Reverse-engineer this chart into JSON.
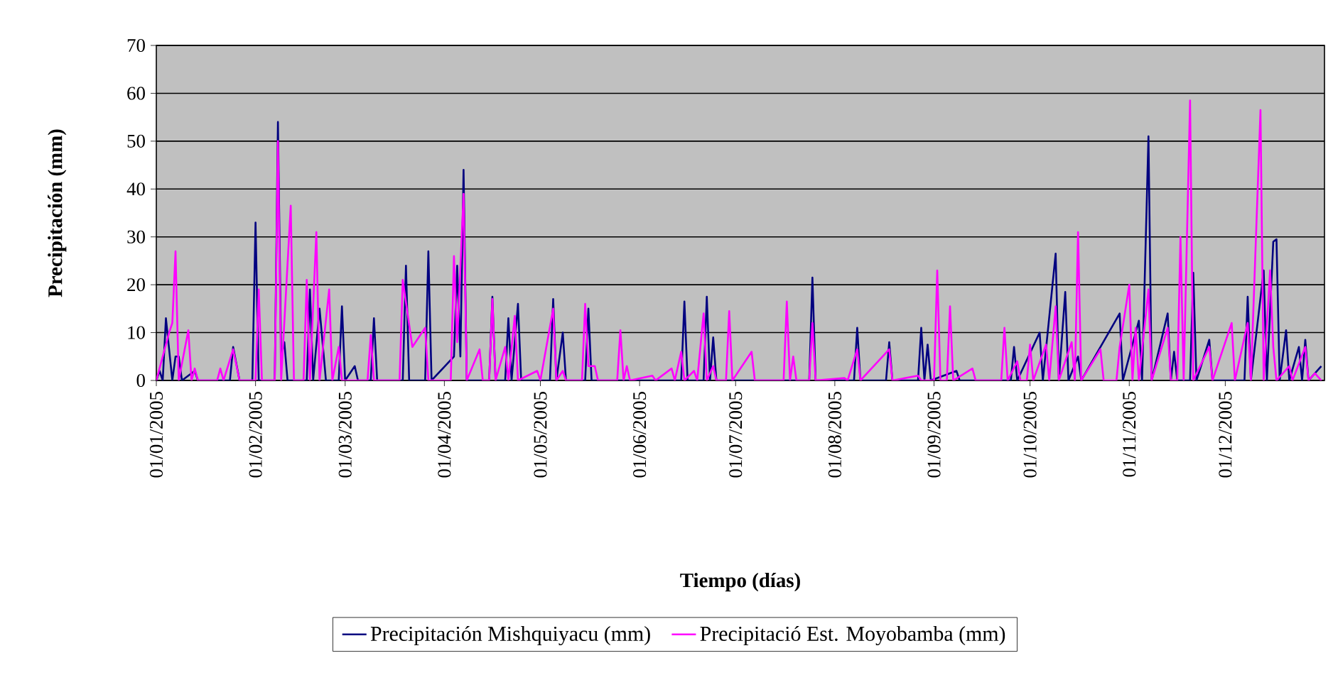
{
  "chart_data": {
    "type": "line",
    "xlabel": "Tiempo (días)",
    "ylabel": "Precipitación (mm)",
    "xlim": [
      "2005-01-01",
      "2006-01-01"
    ],
    "ylim": [
      0,
      70
    ],
    "yticks": [
      0,
      10,
      20,
      30,
      40,
      50,
      60,
      70
    ],
    "xticks": [
      {
        "value": "2005-01-01",
        "label": "01/01/2005"
      },
      {
        "value": "2005-02-01",
        "label": "01/02/2005"
      },
      {
        "value": "2005-03-01",
        "label": "01/03/2005"
      },
      {
        "value": "2005-04-01",
        "label": "01/04/2005"
      },
      {
        "value": "2005-05-01",
        "label": "01/05/2005"
      },
      {
        "value": "2005-06-01",
        "label": "01/06/2005"
      },
      {
        "value": "2005-07-01",
        "label": "01/07/2005"
      },
      {
        "value": "2005-08-01",
        "label": "01/08/2005"
      },
      {
        "value": "2005-09-01",
        "label": "01/09/2005"
      },
      {
        "value": "2005-10-01",
        "label": "01/10/2005"
      },
      {
        "value": "2005-11-01",
        "label": "01/11/2005"
      },
      {
        "value": "2005-12-01",
        "label": "01/12/2005"
      }
    ],
    "grid": "y",
    "legend": "bottom",
    "series": [
      {
        "name": "Precipitación Mishquiyacu (mm)",
        "color": "#000080",
        "x": [
          "2005-01-01",
          "2005-01-02",
          "2005-01-03",
          "2005-01-04",
          "2005-01-06",
          "2005-01-07",
          "2005-01-08",
          "2005-01-09",
          "2005-01-13",
          "2005-01-14",
          "2005-01-24",
          "2005-01-25",
          "2005-01-27",
          "2005-01-31",
          "2005-02-01",
          "2005-02-02",
          "2005-02-07",
          "2005-02-08",
          "2005-02-09",
          "2005-02-10",
          "2005-02-11",
          "2005-02-17",
          "2005-02-18",
          "2005-02-19",
          "2005-02-21",
          "2005-02-23",
          "2005-02-27",
          "2005-02-28",
          "2005-03-01",
          "2005-03-04",
          "2005-03-05",
          "2005-03-09",
          "2005-03-10",
          "2005-03-11",
          "2005-03-19",
          "2005-03-20",
          "2005-03-21",
          "2005-03-26",
          "2005-03-27",
          "2005-03-28",
          "2005-04-04",
          "2005-04-05",
          "2005-04-06",
          "2005-04-07",
          "2005-04-08",
          "2005-04-15",
          "2005-04-16",
          "2005-04-17",
          "2005-04-20",
          "2005-04-21",
          "2005-04-22",
          "2005-04-24",
          "2005-04-25",
          "2005-05-04",
          "2005-05-05",
          "2005-05-06",
          "2005-05-08",
          "2005-05-09",
          "2005-05-15",
          "2005-05-16",
          "2005-05-17",
          "2005-06-14",
          "2005-06-15",
          "2005-06-16",
          "2005-06-21",
          "2005-06-22",
          "2005-06-23",
          "2005-06-24",
          "2005-06-25",
          "2005-07-24",
          "2005-07-25",
          "2005-07-26",
          "2005-08-07",
          "2005-08-08",
          "2005-08-09",
          "2005-08-17",
          "2005-08-18",
          "2005-08-19",
          "2005-08-27",
          "2005-08-28",
          "2005-08-29",
          "2005-08-30",
          "2005-08-31",
          "2005-09-08",
          "2005-09-09",
          "2005-09-25",
          "2005-09-26",
          "2005-09-27",
          "2005-10-04",
          "2005-10-05",
          "2005-10-09",
          "2005-10-10",
          "2005-10-12",
          "2005-10-13",
          "2005-10-16",
          "2005-10-17",
          "2005-10-29",
          "2005-10-30",
          "2005-11-04",
          "2005-11-05",
          "2005-11-07",
          "2005-11-08",
          "2005-11-13",
          "2005-11-14",
          "2005-11-15",
          "2005-11-16",
          "2005-11-20",
          "2005-11-21",
          "2005-11-22",
          "2005-11-26",
          "2005-11-27",
          "2005-12-07",
          "2005-12-08",
          "2005-12-09",
          "2005-12-13",
          "2005-12-14",
          "2005-12-16",
          "2005-12-17",
          "2005-12-18",
          "2005-12-20",
          "2005-12-21",
          "2005-12-24",
          "2005-12-25",
          "2005-12-26",
          "2005-12-27",
          "2005-12-31"
        ],
        "values": [
          0,
          2,
          0,
          13,
          0,
          5,
          5,
          0,
          2,
          0,
          0,
          7,
          0,
          0,
          33,
          0,
          0,
          54,
          5,
          8,
          0,
          0,
          19,
          0,
          15,
          0,
          0,
          15.5,
          0,
          3,
          0,
          0,
          13,
          0,
          0,
          24,
          0,
          0,
          27,
          0,
          5,
          24,
          5,
          44,
          0,
          0,
          17.5,
          0,
          0,
          13,
          0,
          16,
          0,
          0,
          17,
          0,
          10,
          0,
          0,
          15,
          0,
          0,
          16.5,
          0,
          0,
          17.5,
          0,
          9,
          0,
          0,
          21.5,
          0,
          0,
          11,
          0,
          0,
          8,
          0,
          0,
          11,
          0,
          7.5,
          0,
          2,
          0,
          0,
          7,
          0,
          10,
          0,
          26.5,
          0,
          18.5,
          0,
          5,
          0,
          14,
          0,
          12.5,
          0,
          51,
          0,
          14,
          0,
          6,
          0,
          0,
          22.5,
          0,
          8.5,
          0,
          0,
          17.5,
          0,
          23,
          0,
          29,
          29.5,
          0,
          10.5,
          0,
          7,
          0,
          8.5,
          0,
          3
        ]
      },
      {
        "name": "Precipitació Est. Moyobamba (mm)",
        "color": "#ff00ff",
        "x": [
          "2005-01-01",
          "2005-01-05",
          "2005-01-06",
          "2005-01-07",
          "2005-01-08",
          "2005-01-11",
          "2005-01-12",
          "2005-01-13",
          "2005-01-14",
          "2005-01-20",
          "2005-01-21",
          "2005-01-22",
          "2005-01-25",
          "2005-01-27",
          "2005-02-01",
          "2005-02-02",
          "2005-02-03",
          "2005-02-07",
          "2005-02-08",
          "2005-02-09",
          "2005-02-12",
          "2005-02-13",
          "2005-02-16",
          "2005-02-17",
          "2005-02-18",
          "2005-02-20",
          "2005-02-21",
          "2005-02-24",
          "2005-02-25",
          "2005-02-27",
          "2005-02-28",
          "2005-03-08",
          "2005-03-09",
          "2005-03-10",
          "2005-03-18",
          "2005-03-19",
          "2005-03-22",
          "2005-03-26",
          "2005-03-27",
          "2005-04-03",
          "2005-04-04",
          "2005-04-05",
          "2005-04-07",
          "2005-04-08",
          "2005-04-12",
          "2005-04-13",
          "2005-04-15",
          "2005-04-16",
          "2005-04-17",
          "2005-04-20",
          "2005-04-21",
          "2005-04-23",
          "2005-04-24",
          "2005-04-30",
          "2005-05-01",
          "2005-05-05",
          "2005-05-06",
          "2005-05-08",
          "2005-05-09",
          "2005-05-14",
          "2005-05-15",
          "2005-05-16",
          "2005-05-18",
          "2005-05-19",
          "2005-05-25",
          "2005-05-26",
          "2005-05-27",
          "2005-05-28",
          "2005-05-29",
          "2005-06-05",
          "2005-06-06",
          "2005-06-11",
          "2005-06-12",
          "2005-06-14",
          "2005-06-15",
          "2005-06-18",
          "2005-06-19",
          "2005-06-21",
          "2005-06-22",
          "2005-06-24",
          "2005-06-25",
          "2005-06-28",
          "2005-06-29",
          "2005-06-30",
          "2005-07-06",
          "2005-07-07",
          "2005-07-16",
          "2005-07-17",
          "2005-07-18",
          "2005-07-19",
          "2005-07-20",
          "2005-07-24",
          "2005-07-25",
          "2005-07-26",
          "2005-08-04",
          "2005-08-05",
          "2005-08-08",
          "2005-08-09",
          "2005-08-18",
          "2005-08-19",
          "2005-08-27",
          "2005-08-28",
          "2005-09-01",
          "2005-09-02",
          "2005-09-03",
          "2005-09-05",
          "2005-09-06",
          "2005-09-07",
          "2005-09-13",
          "2005-09-14",
          "2005-09-22",
          "2005-09-23",
          "2005-09-24",
          "2005-09-27",
          "2005-09-28",
          "2005-09-30",
          "2005-10-01",
          "2005-10-02",
          "2005-10-06",
          "2005-10-07",
          "2005-10-09",
          "2005-10-10",
          "2005-10-14",
          "2005-10-15",
          "2005-10-16",
          "2005-10-17",
          "2005-10-23",
          "2005-10-24",
          "2005-10-28",
          "2005-10-29",
          "2005-11-01",
          "2005-11-02",
          "2005-11-03",
          "2005-11-04",
          "2005-11-07",
          "2005-11-08",
          "2005-11-13",
          "2005-11-14",
          "2005-11-16",
          "2005-11-17",
          "2005-11-18",
          "2005-11-20",
          "2005-11-21",
          "2005-11-26",
          "2005-11-27",
          "2005-12-03",
          "2005-12-04",
          "2005-12-08",
          "2005-12-09",
          "2005-12-12",
          "2005-12-13",
          "2005-12-15",
          "2005-12-16",
          "2005-12-17",
          "2005-12-21",
          "2005-12-22",
          "2005-12-26",
          "2005-12-27",
          "2005-12-29",
          "2005-12-31"
        ],
        "values": [
          0,
          10,
          12,
          27,
          0,
          10.5,
          0,
          2.5,
          0,
          0,
          2.5,
          0,
          6.5,
          0,
          0,
          19,
          0,
          0,
          50,
          0,
          36.5,
          0,
          0,
          21,
          0,
          31,
          0,
          19,
          0,
          7,
          0,
          0,
          9.5,
          0,
          0,
          21,
          7,
          11,
          0,
          0,
          26,
          8,
          39,
          0,
          6.5,
          0,
          0,
          17,
          0,
          7,
          0,
          13.5,
          0,
          2,
          0,
          15,
          0,
          2,
          0,
          0,
          16,
          3,
          3,
          0,
          0,
          10.5,
          0,
          3,
          0,
          1,
          0,
          2.5,
          0,
          6,
          0,
          2,
          0,
          14,
          0,
          3,
          0,
          0,
          14.5,
          0,
          6,
          0,
          0,
          16.5,
          0,
          5,
          0,
          0,
          12,
          0,
          0.5,
          0,
          6.5,
          0,
          6.5,
          0,
          1,
          0,
          0,
          23,
          0,
          0,
          15.5,
          0,
          2.5,
          0,
          0,
          11,
          0,
          4,
          0,
          0,
          7.5,
          0,
          7.5,
          0,
          15.5,
          0,
          8,
          0,
          31,
          0,
          6.5,
          0,
          0,
          7,
          20,
          0,
          11,
          0,
          19,
          0,
          11,
          0,
          0,
          30,
          0,
          58.5,
          0,
          7,
          0,
          12,
          0,
          12,
          0,
          56.5,
          0,
          23,
          7,
          0,
          3,
          0,
          7,
          0,
          1.5,
          0
        ]
      }
    ]
  }
}
